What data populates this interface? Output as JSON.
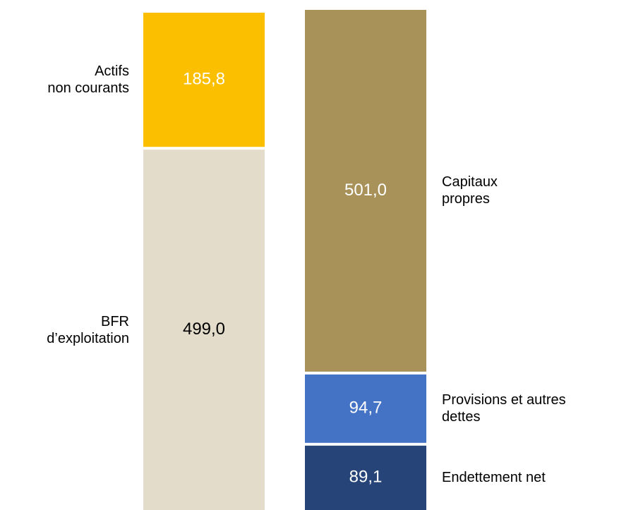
{
  "chart_data": {
    "type": "stacked_bar",
    "categories": [
      null,
      null
    ],
    "series": [
      {
        "name": "BFR\nd’exploitation",
        "color": "#e4dccb",
        "text_color": "#000000",
        "values": [
          499.0,
          null
        ],
        "value_labels": [
          "499,0",
          null
        ]
      },
      {
        "name": "Actifs\nnon courants",
        "color": "#fcbf00",
        "text_color": "#ffffff",
        "values": [
          185.8,
          null
        ],
        "value_labels": [
          "185,8",
          null
        ]
      },
      {
        "name": "Endettement net",
        "color": "#264478",
        "text_color": "#ffffff",
        "values": [
          null,
          89.1
        ],
        "value_labels": [
          null,
          "89,1"
        ]
      },
      {
        "name": "Provisions et autres\ndettes",
        "color": "#4472c4",
        "text_color": "#ffffff",
        "values": [
          null,
          94.7
        ],
        "value_labels": [
          null,
          "94,7"
        ]
      },
      {
        "name": "Capitaux\npropres",
        "color": "#a8925a",
        "text_color": "#ffffff",
        "values": [
          null,
          501.0
        ],
        "value_labels": [
          null,
          "501,0"
        ]
      }
    ]
  }
}
